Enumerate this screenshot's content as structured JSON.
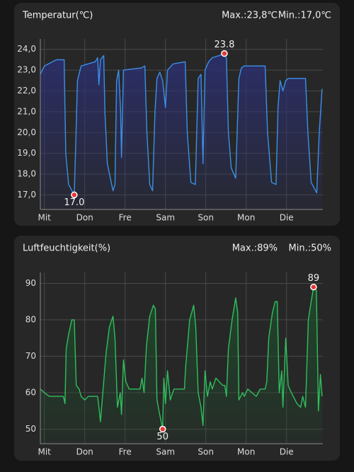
{
  "chart_data": [
    {
      "type": "line",
      "title": "Temperatur(℃)",
      "max_label": "Max.:23,8℃",
      "min_label": "Min.:17,0℃",
      "color": "#3b8fe8",
      "fill_color": "#2b2f6e",
      "grid": true,
      "xlim": [
        -0.1,
        6.9
      ],
      "xticks": [
        {
          "value": 0,
          "label": "Mit"
        },
        {
          "value": 1,
          "label": "Don"
        },
        {
          "value": 2,
          "label": "Fre"
        },
        {
          "value": 3,
          "label": "Sam"
        },
        {
          "value": 4,
          "label": "Son"
        },
        {
          "value": 5,
          "label": "Mon"
        },
        {
          "value": 6,
          "label": "Die"
        }
      ],
      "ylim": [
        16.3,
        24.5
      ],
      "yticks": [
        {
          "value": 17,
          "label": "17,0"
        },
        {
          "value": 18,
          "label": "18,0"
        },
        {
          "value": 19,
          "label": "19,0"
        },
        {
          "value": 20,
          "label": "20,0"
        },
        {
          "value": 21,
          "label": "21,0"
        },
        {
          "value": 22,
          "label": "22,0"
        },
        {
          "value": 23,
          "label": "23,0"
        },
        {
          "value": 24,
          "label": "24,0"
        }
      ],
      "x": [
        -0.1,
        0.0,
        0.3,
        0.49,
        0.53,
        0.6,
        0.74,
        0.77,
        0.82,
        0.91,
        1.26,
        1.32,
        1.35,
        1.39,
        1.47,
        1.5,
        1.56,
        1.7,
        1.75,
        1.79,
        1.84,
        1.89,
        1.91,
        1.96,
        2.4,
        2.49,
        2.54,
        2.61,
        2.68,
        2.74,
        2.79,
        2.86,
        2.93,
        3.0,
        3.05,
        3.19,
        3.49,
        3.54,
        3.63,
        3.74,
        3.81,
        3.88,
        3.93,
        3.98,
        4.07,
        4.16,
        4.33,
        4.46,
        4.51,
        4.56,
        4.63,
        4.74,
        4.82,
        4.88,
        4.95,
        5.47,
        5.53,
        5.63,
        5.74,
        5.79,
        5.84,
        5.91,
        5.98,
        6.05,
        6.47,
        6.53,
        6.61,
        6.75,
        6.81,
        6.88
      ],
      "values": [
        22.8,
        23.2,
        23.5,
        23.5,
        19.0,
        17.5,
        17.0,
        19.0,
        22.5,
        23.2,
        23.4,
        23.6,
        22.3,
        23.5,
        23.7,
        21.0,
        18.5,
        17.2,
        17.5,
        22.5,
        23.0,
        21.0,
        18.8,
        23.0,
        23.1,
        23.2,
        20.0,
        17.5,
        17.2,
        21.0,
        22.6,
        22.9,
        22.5,
        21.2,
        23.0,
        23.3,
        23.4,
        20.0,
        17.6,
        17.5,
        22.6,
        22.8,
        18.5,
        23.0,
        23.4,
        23.6,
        23.7,
        23.8,
        23.6,
        20.0,
        18.3,
        17.8,
        22.6,
        23.1,
        23.2,
        23.2,
        20.0,
        17.6,
        17.5,
        21.2,
        22.5,
        22.0,
        22.5,
        22.6,
        22.6,
        20.0,
        17.6,
        17.1,
        20.0,
        22.1
      ],
      "annotations": [
        {
          "text": "23.8",
          "x": 4.46,
          "y": 23.8
        },
        {
          "text": "17.0",
          "x": 0.74,
          "y": 17.0
        }
      ]
    },
    {
      "type": "line",
      "title": "Luftfeuchtigkeit(%)",
      "max_label": "Max.:89%",
      "min_label": "Min.:50%",
      "color": "#2fbf5c",
      "fill_color": "#1f4a2c",
      "grid": true,
      "xlim": [
        -0.1,
        6.9
      ],
      "xticks": [
        {
          "value": 0,
          "label": "Mit"
        },
        {
          "value": 1,
          "label": "Don"
        },
        {
          "value": 2,
          "label": "Fre"
        },
        {
          "value": 3,
          "label": "Sam"
        },
        {
          "value": 4,
          "label": "Son"
        },
        {
          "value": 5,
          "label": "Mon"
        },
        {
          "value": 6,
          "label": "Die"
        }
      ],
      "ylim": [
        46,
        93
      ],
      "yticks": [
        50,
        60,
        70,
        80,
        90
      ],
      "x": [
        -0.1,
        0.0,
        0.12,
        0.47,
        0.51,
        0.54,
        0.6,
        0.68,
        0.74,
        0.79,
        0.86,
        0.91,
        1.0,
        1.09,
        1.32,
        1.35,
        1.39,
        1.44,
        1.53,
        1.61,
        1.7,
        1.75,
        1.81,
        1.88,
        1.91,
        1.96,
        2.02,
        2.1,
        2.37,
        2.42,
        2.47,
        2.53,
        2.61,
        2.7,
        2.75,
        2.79,
        2.84,
        2.93,
        2.96,
        3.0,
        3.05,
        3.12,
        3.21,
        3.47,
        3.5,
        3.6,
        3.7,
        3.75,
        3.81,
        3.88,
        3.93,
        3.98,
        4.04,
        4.11,
        4.16,
        4.25,
        4.42,
        4.47,
        4.51,
        4.56,
        4.65,
        4.74,
        4.79,
        4.82,
        4.91,
        4.95,
        5.04,
        5.25,
        5.35,
        5.47,
        5.51,
        5.56,
        5.65,
        5.72,
        5.77,
        5.82,
        5.88,
        5.91,
        5.98,
        6.04,
        6.12,
        6.26,
        6.35,
        6.4,
        6.47,
        6.54,
        6.61,
        6.67,
        6.74,
        6.79,
        6.84,
        6.88
      ],
      "values": [
        61,
        60,
        59,
        59,
        57,
        72,
        76,
        80,
        80,
        62,
        61,
        59,
        58,
        59,
        59,
        56,
        52,
        59,
        71,
        78,
        81,
        75,
        56,
        60,
        54,
        69,
        63,
        61,
        61,
        64,
        60,
        73,
        81,
        84,
        83,
        58,
        55,
        50,
        64,
        57,
        66,
        58,
        61,
        61,
        67,
        80,
        84,
        78,
        60,
        56,
        51,
        66,
        59,
        63,
        61,
        64,
        62,
        62,
        59,
        72,
        80,
        86,
        82,
        58,
        60,
        59,
        61,
        59,
        61,
        61,
        63,
        75,
        82,
        85,
        85,
        60,
        66,
        56,
        75,
        62,
        60,
        57,
        56,
        59,
        56,
        80,
        85,
        89,
        88,
        55,
        65,
        59
      ],
      "annotations": [
        {
          "text": "89",
          "x": 6.67,
          "y": 89
        },
        {
          "text": "50",
          "x": 2.93,
          "y": 50
        }
      ]
    }
  ]
}
